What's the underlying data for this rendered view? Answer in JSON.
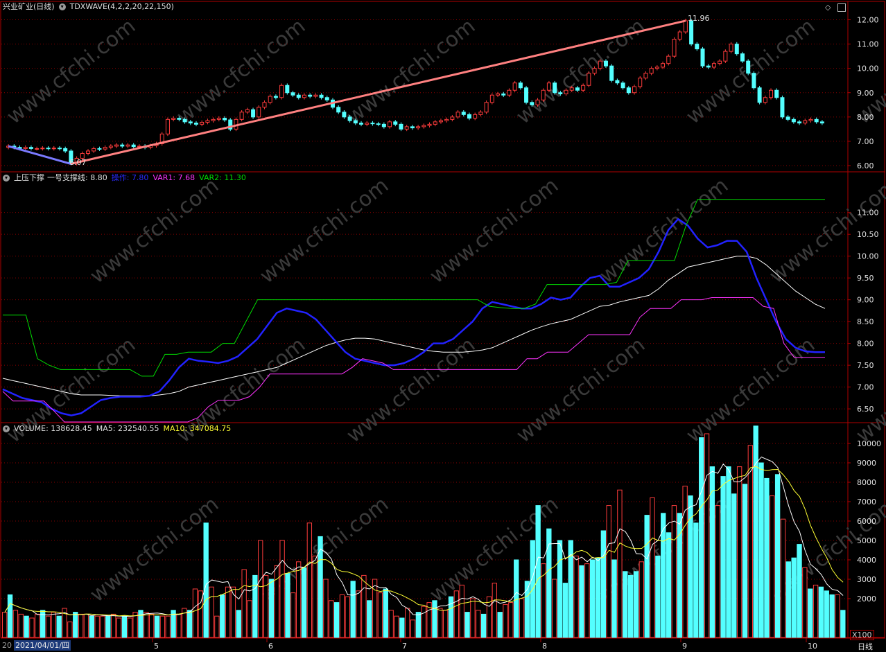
{
  "panel1": {
    "title": "兴业矿业(日线)",
    "indicator": "TDXWAVE(4,2,2,20,22,150)",
    "high_label": "11.96",
    "low_label": "6.07",
    "yticks": [
      "12.00",
      "11.00",
      "10.00",
      "9.00",
      "8.00",
      "7.00",
      "6.00"
    ]
  },
  "panel2": {
    "name": "上压下撑",
    "line1_label": "一号支撑线:",
    "line1_value": "8.80",
    "line2_label": "操作:",
    "line2_value": "7.80",
    "line3_label": "VAR1:",
    "line3_value": "7.68",
    "line4_label": "VAR2:",
    "line4_value": "11.30",
    "yticks": [
      "11.00",
      "10.50",
      "10.00",
      "9.50",
      "9.00",
      "8.50",
      "8.00",
      "7.50",
      "7.00",
      "6.50"
    ]
  },
  "panel3": {
    "vol_label": "VOLUME:",
    "vol_value": "138628.45",
    "ma5_label": "MA5:",
    "ma5_value": "232540.55",
    "ma10_label": "MA10:",
    "ma10_value": "347084.75",
    "yticks": [
      "10000",
      "9000",
      "8000",
      "7000",
      "6000",
      "5000",
      "4000",
      "3000",
      "2000"
    ],
    "unit": "X100"
  },
  "xaxis": {
    "start": "20",
    "date": "2021/04/01/四",
    "months": [
      "5",
      "6",
      "7",
      "8",
      "9",
      "10"
    ],
    "period": "日线"
  },
  "colors": {
    "up": "#ff3c3c",
    "down": "#54ffff",
    "grid": "#8a0000",
    "frame": "#b00000",
    "wave": "#ff8080",
    "blue": "#2222ff",
    "white": "#ffffff",
    "green": "#00dd00",
    "magenta": "#ff33ff",
    "yellow": "#ffff33"
  },
  "chart_data": [
    {
      "type": "candlestick",
      "title": "兴业矿业(日线)",
      "ylim": [
        5.8,
        12.3
      ],
      "closes": [
        6.8,
        6.75,
        6.7,
        6.75,
        6.7,
        6.7,
        6.72,
        6.7,
        6.72,
        6.7,
        6.6,
        6.1,
        6.3,
        6.5,
        6.6,
        6.7,
        6.68,
        6.75,
        6.8,
        6.85,
        6.8,
        6.85,
        6.78,
        6.8,
        6.75,
        6.82,
        6.9,
        7.3,
        7.9,
        7.95,
        7.9,
        7.8,
        7.75,
        7.7,
        7.78,
        7.85,
        7.9,
        7.95,
        7.88,
        7.5,
        7.9,
        8.2,
        8.3,
        8.0,
        8.4,
        8.6,
        8.85,
        8.8,
        9.3,
        9.0,
        8.9,
        8.8,
        8.9,
        8.85,
        8.9,
        8.8,
        8.7,
        8.4,
        8.2,
        8.0,
        7.85,
        7.75,
        7.7,
        7.75,
        7.72,
        7.7,
        7.6,
        7.8,
        7.7,
        7.5,
        7.6,
        7.55,
        7.6,
        7.65,
        7.7,
        7.8,
        7.85,
        7.9,
        8.0,
        8.2,
        8.1,
        7.95,
        8.1,
        8.2,
        8.6,
        8.9,
        8.95,
        8.9,
        9.1,
        9.4,
        9.2,
        8.6,
        8.5,
        8.7,
        9.1,
        9.4,
        9.0,
        8.95,
        9.1,
        9.2,
        9.1,
        9.3,
        9.8,
        10.0,
        10.3,
        10.1,
        9.5,
        9.4,
        9.2,
        9.0,
        9.25,
        9.6,
        9.8,
        10.0,
        10.05,
        10.2,
        10.5,
        11.2,
        11.5,
        11.96,
        11.0,
        10.8,
        10.1,
        10.05,
        10.2,
        10.3,
        10.7,
        11.0,
        10.6,
        10.3,
        9.8,
        9.2,
        8.6,
        8.8,
        9.1,
        8.8,
        8.0,
        7.9,
        7.8,
        7.75,
        7.85,
        7.9,
        7.8,
        7.75
      ]
    },
    {
      "type": "line",
      "title": "上压下撑",
      "ylim": [
        6.2,
        11.9
      ],
      "series": [
        {
          "name": "一号支撑线",
          "values": [
            7.2,
            7.15,
            7.1,
            7.05,
            7.0,
            6.95,
            6.9,
            6.85,
            6.82,
            6.82,
            6.82,
            6.81,
            6.8,
            6.8,
            6.8,
            6.8,
            6.82,
            6.85,
            6.9,
            7.0,
            7.05,
            7.1,
            7.15,
            7.2,
            7.25,
            7.3,
            7.35,
            7.4,
            7.45,
            7.55,
            7.65,
            7.75,
            7.85,
            7.95,
            8.02,
            8.08,
            8.12,
            8.12,
            8.1,
            8.05,
            8.0,
            7.95,
            7.9,
            7.85,
            7.82,
            7.8,
            7.8,
            7.8,
            7.82,
            7.85,
            7.9,
            8.0,
            8.1,
            8.2,
            8.3,
            8.38,
            8.45,
            8.5,
            8.55,
            8.65,
            8.75,
            8.85,
            8.88,
            8.95,
            9.0,
            9.05,
            9.1,
            9.25,
            9.45,
            9.6,
            9.75,
            9.8,
            9.85,
            9.9,
            9.95,
            10.0,
            10.0,
            9.95,
            9.8,
            9.6,
            9.4,
            9.2,
            9.05,
            8.9,
            8.8
          ]
        },
        {
          "name": "操作",
          "values": [
            6.95,
            6.85,
            6.75,
            6.7,
            6.65,
            6.5,
            6.4,
            6.35,
            6.4,
            6.55,
            6.7,
            6.75,
            6.78,
            6.78,
            6.78,
            6.8,
            6.9,
            7.15,
            7.45,
            7.65,
            7.6,
            7.58,
            7.55,
            7.6,
            7.7,
            7.9,
            8.1,
            8.4,
            8.7,
            8.8,
            8.75,
            8.7,
            8.55,
            8.3,
            8.05,
            7.8,
            7.65,
            7.6,
            7.55,
            7.5,
            7.5,
            7.55,
            7.65,
            7.8,
            8.0,
            8.0,
            8.1,
            8.3,
            8.5,
            8.8,
            8.95,
            8.9,
            8.85,
            8.8,
            8.8,
            8.9,
            9.05,
            9.0,
            9.05,
            9.3,
            9.5,
            9.55,
            9.3,
            9.3,
            9.4,
            9.5,
            9.7,
            10.1,
            10.6,
            10.85,
            10.7,
            10.4,
            10.2,
            10.25,
            10.35,
            10.35,
            10.1,
            9.5,
            9.0,
            8.5,
            8.1,
            7.9,
            7.82,
            7.8,
            7.8
          ]
        },
        {
          "name": "VAR1",
          "values": [
            6.9,
            6.68,
            6.68,
            6.68,
            6.68,
            6.45,
            6.2,
            6.2,
            6.2,
            6.2,
            6.2,
            6.2,
            6.2,
            6.2,
            6.2,
            6.2,
            6.2,
            6.2,
            6.2,
            6.3,
            6.55,
            6.7,
            6.7,
            6.7,
            6.78,
            7.0,
            7.3,
            7.3,
            7.3,
            7.3,
            7.3,
            7.3,
            7.3,
            7.3,
            7.45,
            7.65,
            7.6,
            7.55,
            7.4,
            7.4,
            7.4,
            7.4,
            7.4,
            7.4,
            7.4,
            7.4,
            7.4,
            7.4,
            7.4,
            7.4,
            7.4,
            7.65,
            7.65,
            7.8,
            7.8,
            7.8,
            8.0,
            8.2,
            8.2,
            8.2,
            8.2,
            8.2,
            8.6,
            8.8,
            8.8,
            8.8,
            9.0,
            9.0,
            9.0,
            9.05,
            9.05,
            9.05,
            9.05,
            9.05,
            8.85,
            8.8,
            8.0,
            7.68,
            7.68,
            7.68,
            7.68
          ]
        },
        {
          "name": "VAR2",
          "values": [
            8.65,
            8.65,
            8.65,
            7.65,
            7.5,
            7.4,
            7.4,
            7.4,
            7.4,
            7.4,
            7.4,
            7.4,
            7.25,
            7.25,
            7.75,
            7.75,
            7.8,
            7.8,
            7.8,
            8.0,
            8.0,
            8.5,
            9.0,
            9.0,
            9.0,
            9.0,
            9.0,
            9.0,
            9.0,
            9.0,
            9.0,
            9.0,
            9.0,
            9.0,
            9.0,
            9.0,
            9.0,
            9.0,
            9.0,
            9.0,
            9.0,
            9.0,
            8.85,
            8.82,
            8.8,
            8.8,
            8.9,
            9.35,
            9.35,
            9.35,
            9.35,
            9.35,
            9.35,
            9.4,
            9.9,
            9.9,
            9.9,
            9.9,
            9.9,
            10.7,
            11.3,
            11.3,
            11.3,
            11.3,
            11.3,
            11.3,
            11.3,
            11.3,
            11.3,
            11.3,
            11.3,
            11.3
          ]
        }
      ]
    },
    {
      "type": "bar",
      "title": "VOLUME",
      "ylim": [
        0,
        11000
      ],
      "values": [
        1300,
        2200,
        1400,
        1200,
        1100,
        1000,
        1200,
        1400,
        1100,
        1300,
        1100,
        1500,
        800,
        1300,
        1200,
        1200,
        1100,
        1100,
        1100,
        1100,
        1200,
        1000,
        1100,
        1000,
        1300,
        1400,
        1300,
        1200,
        1100,
        1100,
        1100,
        1400,
        1200,
        1500,
        1400,
        2500,
        2400,
        5900,
        2600,
        1100,
        2200,
        2600,
        2600,
        1400,
        3500,
        1900,
        3200,
        5000,
        3200,
        3000,
        3700,
        5000,
        3300,
        2300,
        3900,
        3600,
        5900,
        4200,
        5200,
        3000,
        1900,
        1800,
        2200,
        2100,
        2900,
        2400,
        3200,
        1900,
        3000,
        2300,
        2500,
        1400,
        1100,
        1000,
        1500,
        900,
        1300,
        1600,
        1800,
        1900,
        1500,
        1400,
        2100,
        2400,
        2700,
        1300,
        2000,
        1400,
        1200,
        2100,
        2800,
        1300,
        1700,
        1800,
        4000,
        2000,
        2900,
        5000,
        6800,
        3800,
        5600,
        3000,
        5000,
        2800,
        5000,
        4200,
        3700,
        3800,
        4000,
        4100,
        5500,
        6800,
        4000,
        7600,
        3400,
        3200,
        3400,
        3900,
        6300,
        7200,
        4200,
        6400,
        5400,
        6800,
        6400,
        7800,
        7300,
        5900,
        10300,
        10500,
        8800,
        6800,
        8300,
        8800,
        7400,
        8800,
        7900,
        9900,
        10900,
        9000,
        8200,
        7300,
        8400,
        6100,
        3900,
        4100,
        4800,
        3600,
        2500,
        2700,
        2600,
        2400,
        2200,
        2200,
        1400
      ]
    }
  ]
}
